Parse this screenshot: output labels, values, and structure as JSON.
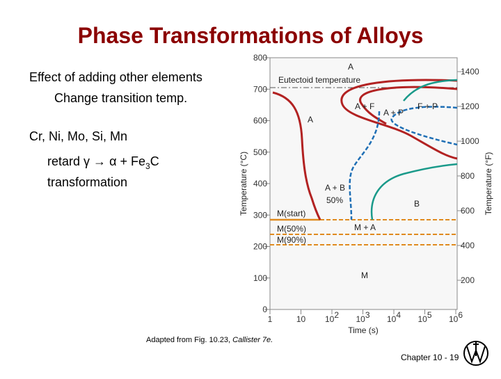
{
  "title": "Phase Transformations of Alloys",
  "body": {
    "line1": "Effect of adding other elements",
    "line2": "Change transition temp.",
    "line3": "Cr, Ni, Mo, Si, Mn",
    "retard": "retard γ",
    "arrow": "→",
    "product": "α + Fe",
    "product_sub": "3",
    "product_end": "C",
    "line5": "transformation"
  },
  "figure": {
    "y_label": "Temperature (°C)",
    "y2_label": "Temperature (°F)",
    "x_label": "Time (s)",
    "y_ticks": [
      "800",
      "700",
      "600",
      "500",
      "400",
      "300",
      "200",
      "100",
      "0"
    ],
    "y2_ticks": [
      "1400",
      "1200",
      "1000",
      "800",
      "600",
      "400",
      "200"
    ],
    "x_ticks": [
      {
        "base": "1",
        "exp": ""
      },
      {
        "base": "10",
        "exp": ""
      },
      {
        "base": "10",
        "exp": "2"
      },
      {
        "base": "10",
        "exp": "3"
      },
      {
        "base": "10",
        "exp": "4"
      },
      {
        "base": "10",
        "exp": "5"
      },
      {
        "base": "10",
        "exp": "6"
      }
    ],
    "labels": {
      "a_top": "A",
      "eutectoid": "Eutectoid temperature",
      "a_f": "A + F",
      "a_p": "A + P",
      "f_p": "F + P",
      "a_mid": "A",
      "a_b": "A + B",
      "pct50": "50%",
      "b": "B",
      "m_start": "M(start)",
      "m_a": "M + A",
      "m50": "M(50%)",
      "m90": "M(90%)",
      "m": "M"
    }
  },
  "caption": {
    "text": "Adapted from Fig. 10.23, ",
    "italic": "Callister 7e."
  },
  "footer": "Chapter 10 - 19"
}
